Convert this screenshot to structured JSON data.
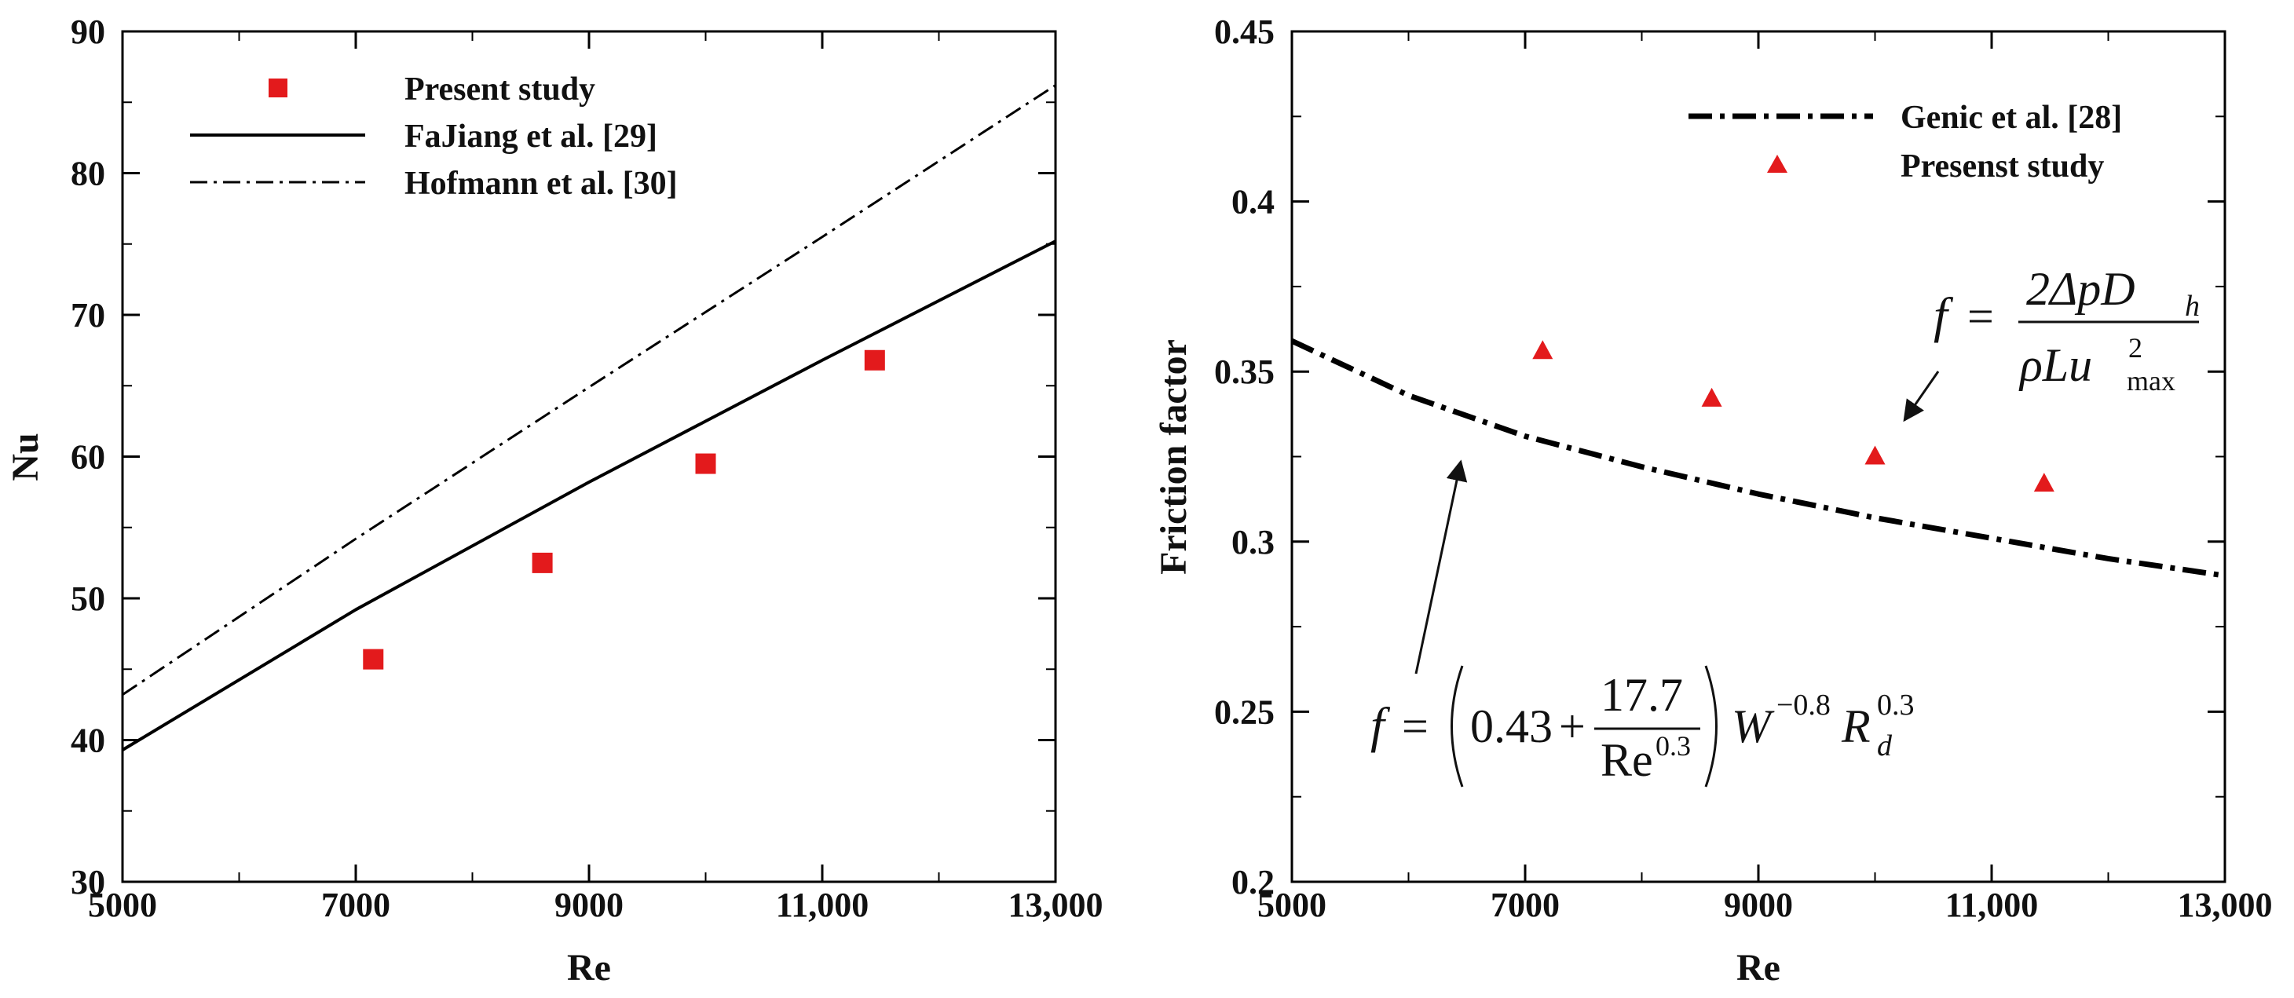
{
  "chart_data": [
    {
      "type": "line",
      "xlabel": "Re",
      "ylabel": "Nu",
      "xlim": [
        5000,
        13000
      ],
      "ylim": [
        30,
        90
      ],
      "xticks": [
        5000,
        7000,
        9000,
        11000,
        13000
      ],
      "xtick_labels": [
        "5000",
        "7000",
        "9000",
        "11,000",
        "13,000"
      ],
      "yticks": [
        30,
        40,
        50,
        60,
        70,
        80,
        90
      ],
      "ytick_labels": [
        "30",
        "40",
        "50",
        "60",
        "70",
        "80",
        "90"
      ],
      "legend_position": "top-left",
      "series": [
        {
          "name": "Present study",
          "kind": "scatter",
          "marker": "square",
          "color": "#e31a1c",
          "x": [
            7150,
            8600,
            10000,
            11450
          ],
          "y": [
            45.7,
            52.5,
            59.5,
            66.8
          ]
        },
        {
          "name": "FaJiang et al. [29]",
          "kind": "line",
          "style": "solid",
          "color": "#000000",
          "x": [
            5000,
            7000,
            9000,
            11000,
            13000
          ],
          "y": [
            39.3,
            49.2,
            58.2,
            66.8,
            75.2
          ]
        },
        {
          "name": "Hofmann et al. [30]",
          "kind": "line",
          "style": "dashdot",
          "color": "#000000",
          "x": [
            5000,
            7000,
            9000,
            11000,
            13000
          ],
          "y": [
            43.2,
            54.2,
            64.9,
            75.5,
            86.2
          ]
        }
      ]
    },
    {
      "type": "line",
      "xlabel": "Re",
      "ylabel": "Friction factor",
      "xlim": [
        5000,
        13000
      ],
      "ylim": [
        0.2,
        0.45
      ],
      "xticks": [
        5000,
        7000,
        9000,
        11000,
        13000
      ],
      "xtick_labels": [
        "5000",
        "7000",
        "9000",
        "11,000",
        "13,000"
      ],
      "yticks": [
        0.2,
        0.25,
        0.3,
        0.35,
        0.4,
        0.45
      ],
      "ytick_labels": [
        "0.2",
        "0.25",
        "0.3",
        "0.35",
        "0.4",
        "0.45"
      ],
      "legend_position": "top-right",
      "series": [
        {
          "name": "Genic et al. [28]",
          "kind": "line",
          "style": "dashdot",
          "color": "#000000",
          "x": [
            5000,
            6000,
            7000,
            8000,
            9000,
            10000,
            11000,
            12000,
            13000
          ],
          "y": [
            0.359,
            0.343,
            0.331,
            0.322,
            0.314,
            0.307,
            0.301,
            0.295,
            0.29
          ]
        },
        {
          "name": "Presenst study",
          "kind": "scatter",
          "marker": "triangle",
          "color": "#e31a1c",
          "x": [
            7150,
            8600,
            10000,
            11450
          ],
          "y": [
            0.356,
            0.342,
            0.325,
            0.317
          ]
        }
      ],
      "annotations": {
        "formula_top": {
          "lhs": "f",
          "eq": "=",
          "numerator": "2ΔpD",
          "num_sub": "h",
          "denominator": "ρLu",
          "den_sup": "2",
          "den_sub": "max"
        },
        "formula_bottom": {
          "lhs": "f",
          "eq": "=",
          "const": "0.43",
          "plus": "+",
          "numerator": "17.7",
          "denominator": "Re",
          "den_sup": "0.3",
          "w": "W",
          "w_sup": "−0.8",
          "r": "R",
          "r_sub": "d",
          "r_sup": "0.3"
        }
      }
    }
  ]
}
